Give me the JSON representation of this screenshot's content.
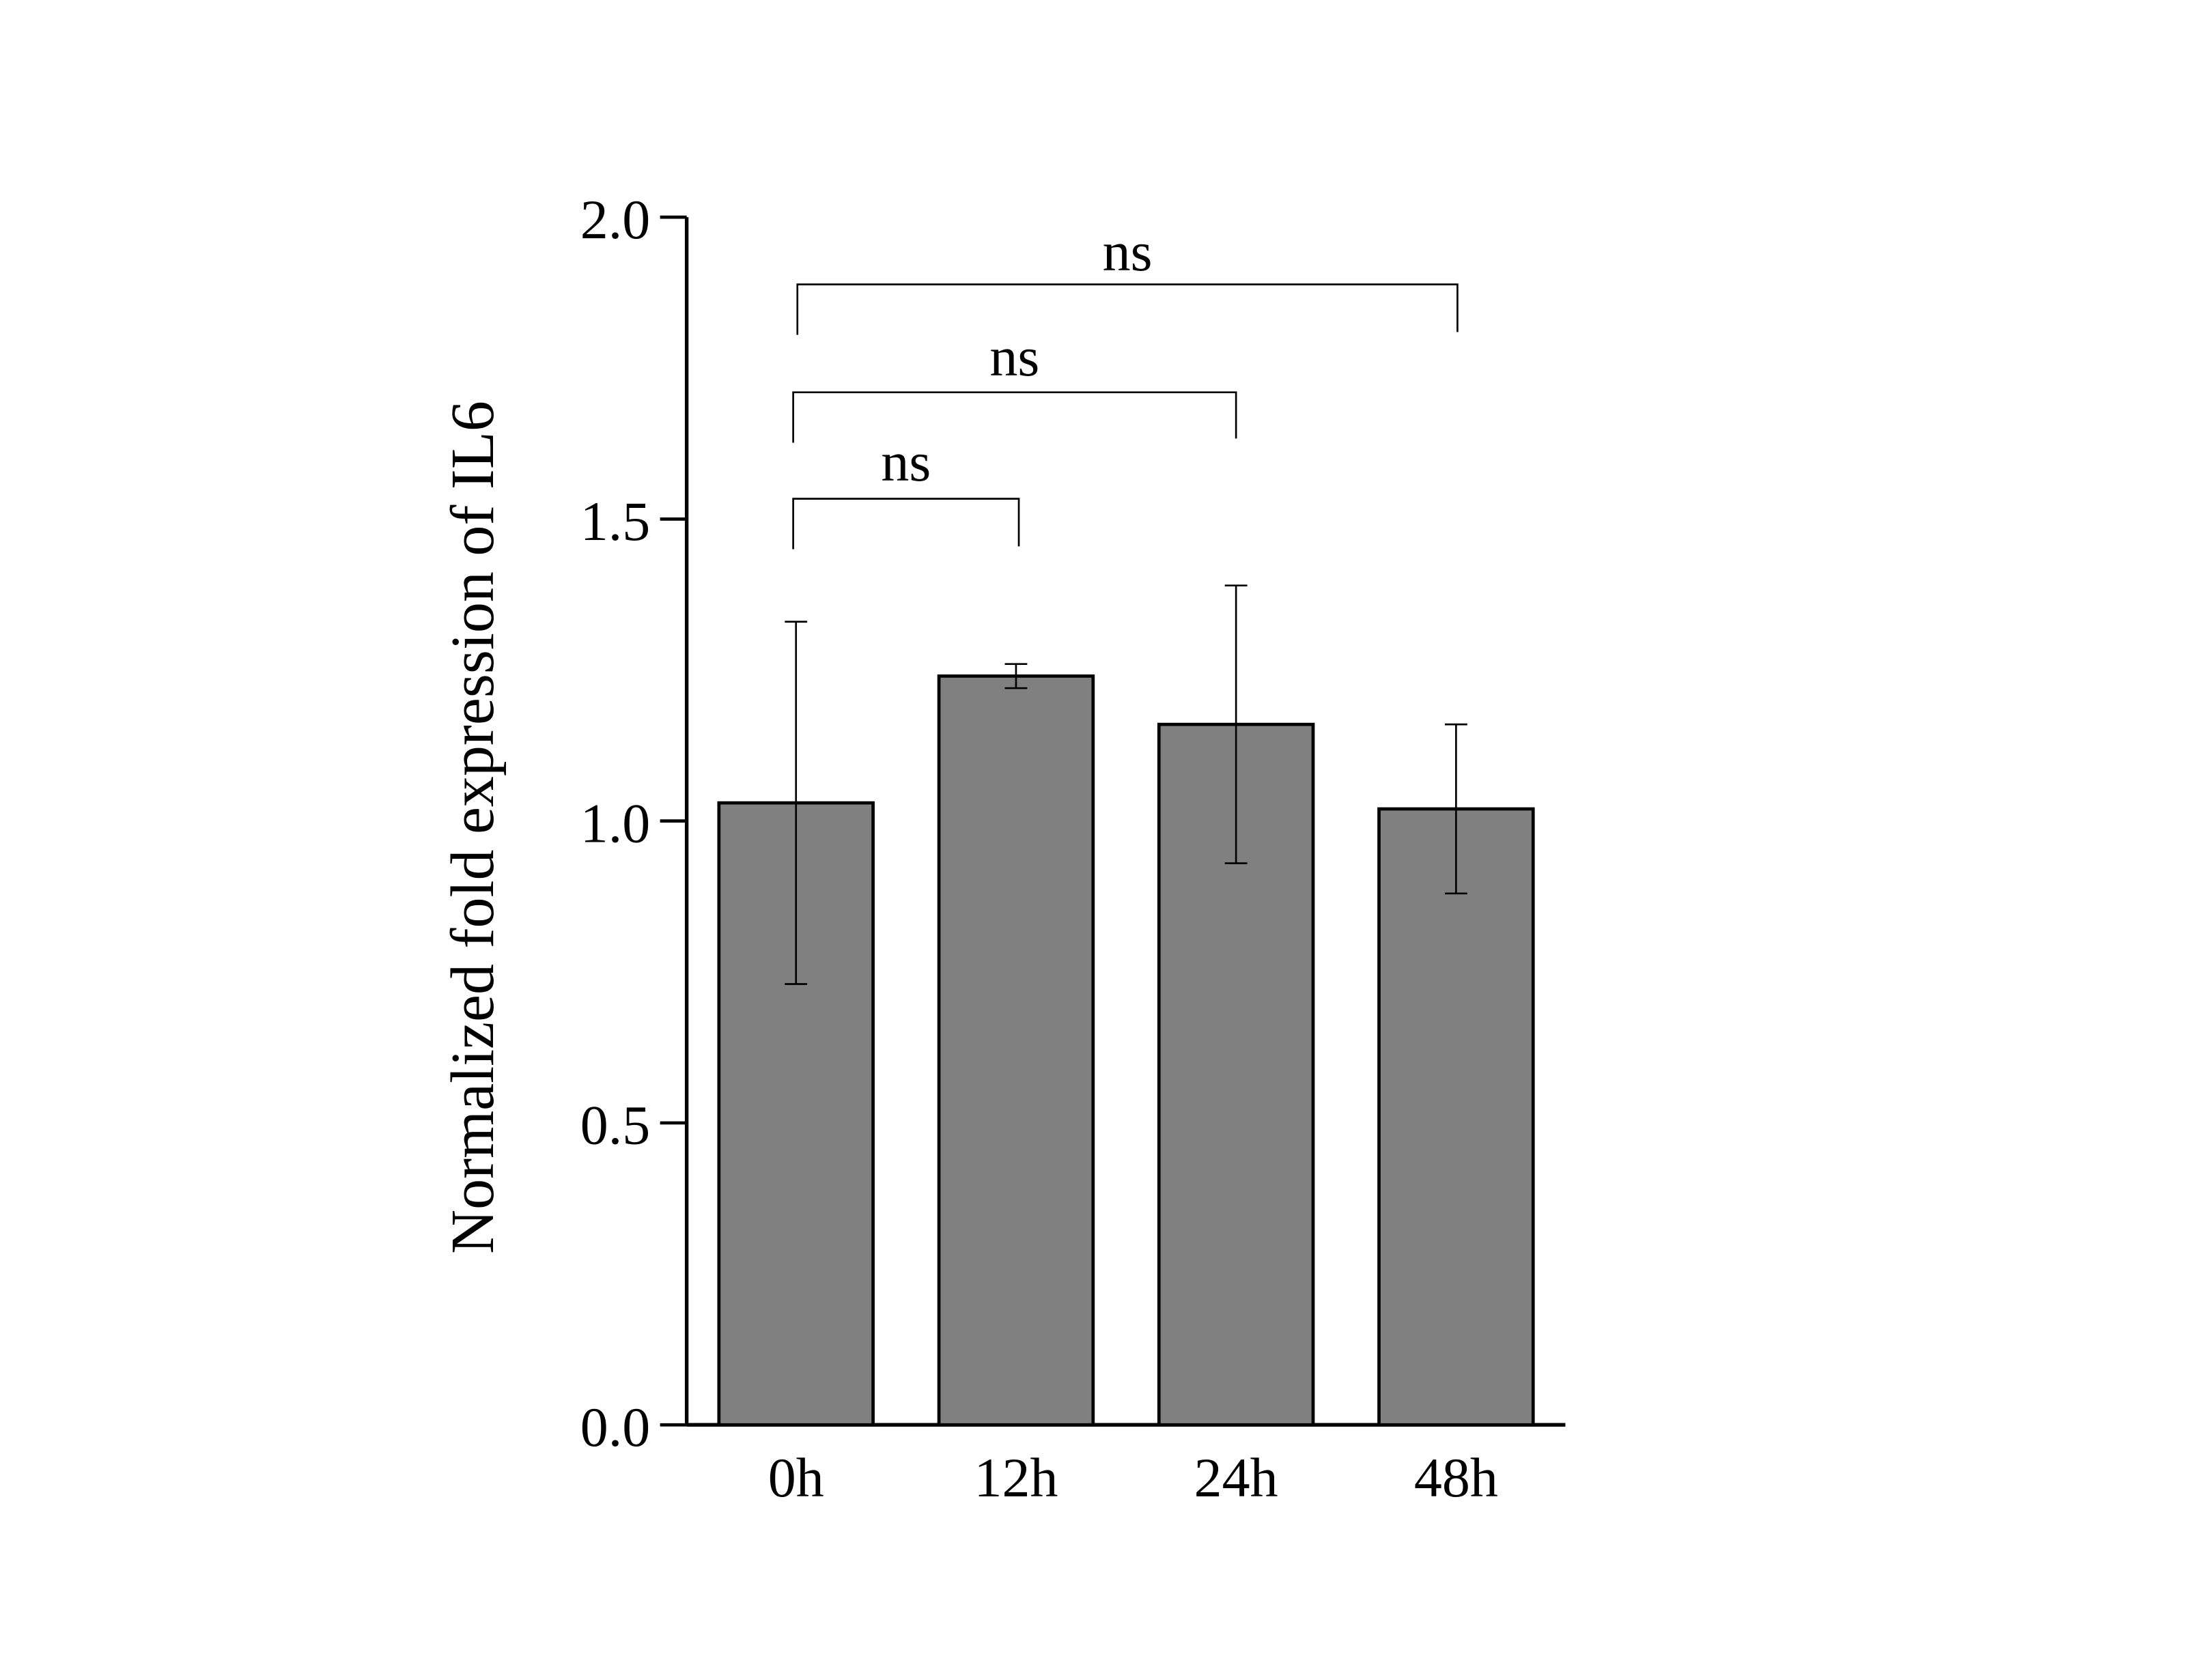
{
  "chart_data": {
    "type": "bar",
    "title": "",
    "xlabel": "",
    "ylabel": "Normalized fold expression of IL6",
    "categories": [
      "0h",
      "12h",
      "24h",
      "48h"
    ],
    "values": [
      1.03,
      1.24,
      1.16,
      1.02
    ],
    "errors": [
      0.3,
      0.02,
      0.23,
      0.14
    ],
    "ylim": [
      0,
      2.0
    ],
    "yticks": [
      0.0,
      0.5,
      1.0,
      1.5,
      2.0
    ],
    "ytick_labels": [
      "0.0",
      "0.5",
      "1.0",
      "1.5",
      "2.0"
    ],
    "grid": false,
    "colors": {
      "bar_fill": "#808080",
      "bar_stroke": "#000000",
      "axis": "#000000"
    },
    "significance": [
      {
        "from": 0,
        "to": 1,
        "label": "ns"
      },
      {
        "from": 0,
        "to": 2,
        "label": "ns"
      },
      {
        "from": 0,
        "to": 3,
        "label": "ns"
      }
    ]
  }
}
